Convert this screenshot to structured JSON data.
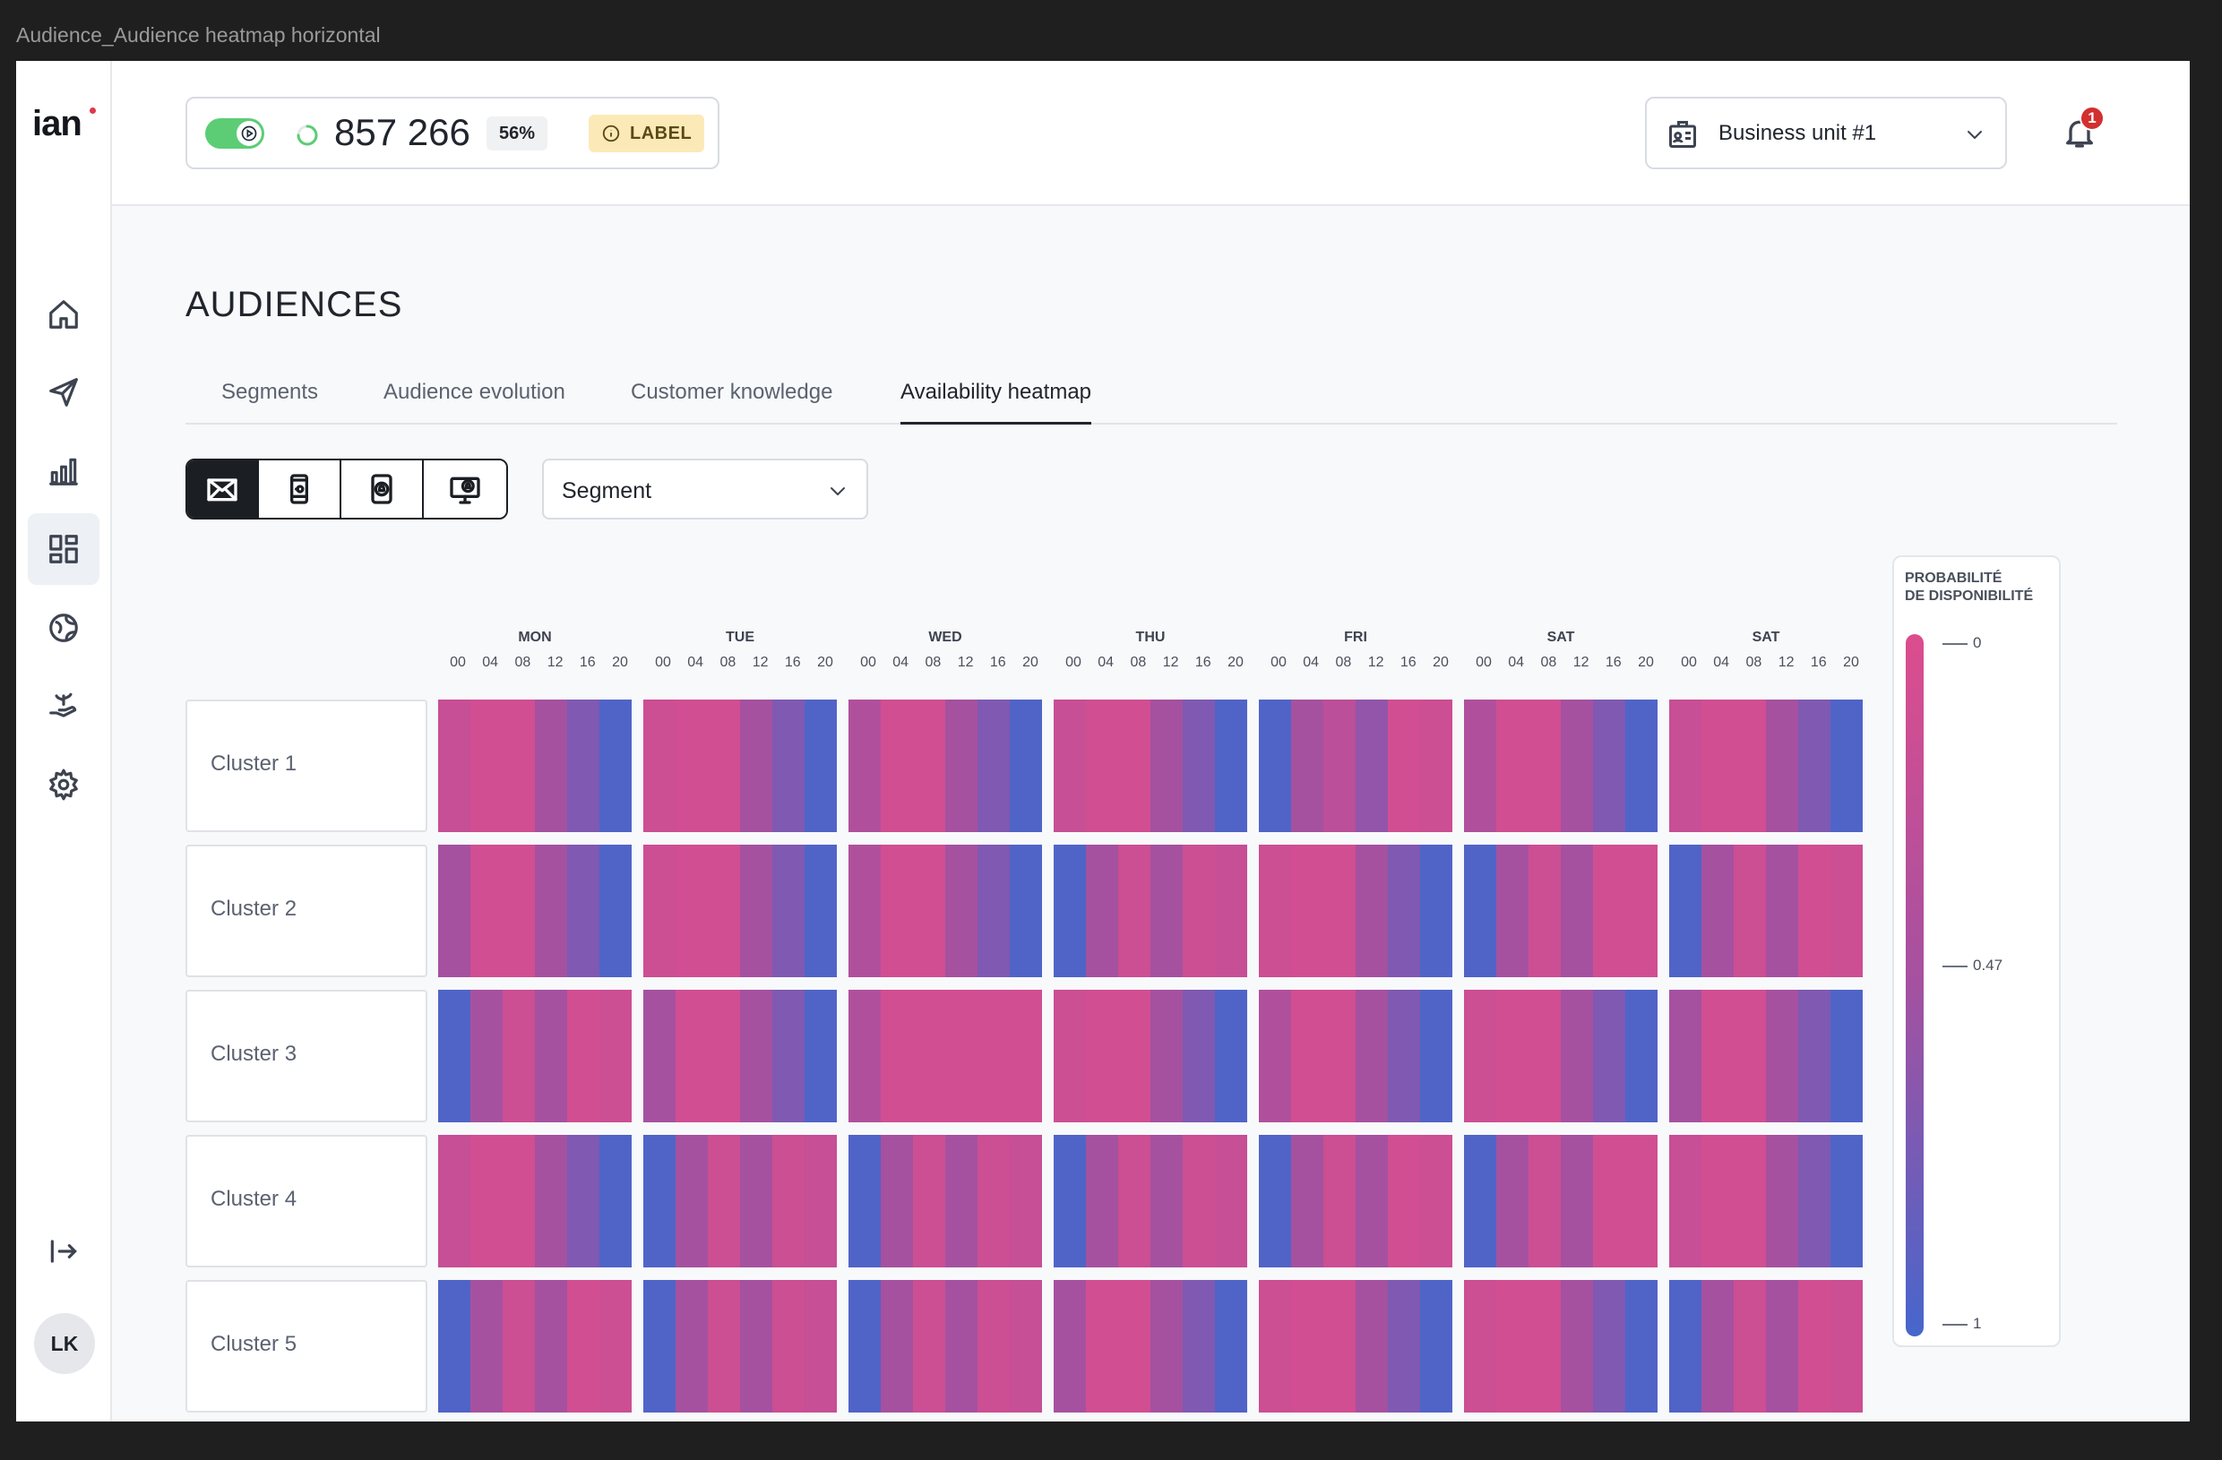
{
  "window": {
    "title": "Audience_Audience heatmap horizontal"
  },
  "brand": {
    "logo_text": "ian"
  },
  "sidebar": {
    "items": [
      {
        "name": "home-icon"
      },
      {
        "name": "send-icon"
      },
      {
        "name": "bar-chart-icon"
      },
      {
        "name": "dashboard-icon"
      },
      {
        "name": "globe-icon"
      },
      {
        "name": "hand-plant-icon"
      },
      {
        "name": "gear-icon"
      }
    ],
    "active_index": 3,
    "user_initials": "LK"
  },
  "header": {
    "count": "857 266",
    "percent": "56%",
    "label_badge": "LABEL",
    "business_unit": "Business unit #1",
    "notification_count": "1"
  },
  "page": {
    "title": "AUDIENCES",
    "tabs": [
      {
        "label": "Segments",
        "active": false
      },
      {
        "label": "Audience evolution",
        "active": false
      },
      {
        "label": "Customer knowledge",
        "active": false
      },
      {
        "label": "Availability heatmap",
        "active": true
      }
    ],
    "channels": [
      "email-icon",
      "mobile-icon",
      "push-notification-icon",
      "web-notification-icon"
    ],
    "segment_select": "Segment"
  },
  "heatmap": {
    "days": [
      "MON",
      "TUE",
      "WED",
      "THU",
      "FRI",
      "SAT",
      "SAT"
    ],
    "hours": [
      "00",
      "04",
      "08",
      "12",
      "16",
      "20"
    ],
    "clusters": [
      "Cluster 1",
      "Cluster 2",
      "Cluster 3",
      "Cluster 4",
      "Cluster 5"
    ],
    "values": [
      [
        [
          0.2,
          0.1,
          0.1,
          0.5,
          0.7,
          0.95
        ],
        [
          0.15,
          0.1,
          0.1,
          0.5,
          0.7,
          0.95
        ],
        [
          0.4,
          0.1,
          0.1,
          0.5,
          0.7,
          0.95
        ],
        [
          0.2,
          0.1,
          0.1,
          0.5,
          0.7,
          0.95
        ],
        [
          0.95,
          0.5,
          0.3,
          0.6,
          0.1,
          0.15
        ],
        [
          0.4,
          0.1,
          0.1,
          0.5,
          0.7,
          0.95
        ],
        [
          0.2,
          0.1,
          0.1,
          0.5,
          0.7,
          0.95
        ]
      ],
      [
        [
          0.5,
          0.1,
          0.1,
          0.5,
          0.7,
          0.95
        ],
        [
          0.15,
          0.1,
          0.1,
          0.5,
          0.7,
          0.95
        ],
        [
          0.4,
          0.1,
          0.1,
          0.5,
          0.7,
          0.95
        ],
        [
          0.95,
          0.5,
          0.15,
          0.5,
          0.15,
          0.2
        ],
        [
          0.15,
          0.1,
          0.1,
          0.5,
          0.7,
          0.95
        ],
        [
          0.95,
          0.5,
          0.15,
          0.5,
          0.1,
          0.1
        ],
        [
          0.95,
          0.5,
          0.15,
          0.5,
          0.1,
          0.15
        ]
      ],
      [
        [
          0.95,
          0.5,
          0.15,
          0.5,
          0.1,
          0.15
        ],
        [
          0.5,
          0.1,
          0.1,
          0.5,
          0.7,
          0.95
        ],
        [
          0.4,
          0.1,
          0.1,
          0.1,
          0.1,
          0.1
        ],
        [
          0.15,
          0.1,
          0.1,
          0.5,
          0.7,
          0.95
        ],
        [
          0.4,
          0.1,
          0.1,
          0.5,
          0.7,
          0.95
        ],
        [
          0.15,
          0.1,
          0.1,
          0.5,
          0.7,
          0.95
        ],
        [
          0.5,
          0.1,
          0.1,
          0.5,
          0.7,
          0.95
        ]
      ],
      [
        [
          0.2,
          0.1,
          0.1,
          0.5,
          0.7,
          0.95
        ],
        [
          0.95,
          0.5,
          0.15,
          0.5,
          0.15,
          0.2
        ],
        [
          0.95,
          0.5,
          0.15,
          0.5,
          0.15,
          0.2
        ],
        [
          0.95,
          0.5,
          0.15,
          0.5,
          0.15,
          0.2
        ],
        [
          0.95,
          0.5,
          0.15,
          0.5,
          0.1,
          0.15
        ],
        [
          0.95,
          0.5,
          0.15,
          0.5,
          0.1,
          0.1
        ],
        [
          0.2,
          0.1,
          0.1,
          0.5,
          0.7,
          0.95
        ]
      ],
      [
        [
          0.95,
          0.5,
          0.15,
          0.5,
          0.1,
          0.15
        ],
        [
          0.95,
          0.5,
          0.15,
          0.5,
          0.15,
          0.2
        ],
        [
          0.95,
          0.5,
          0.15,
          0.5,
          0.15,
          0.2
        ],
        [
          0.5,
          0.1,
          0.1,
          0.5,
          0.7,
          0.95
        ],
        [
          0.15,
          0.1,
          0.1,
          0.5,
          0.7,
          0.95
        ],
        [
          0.15,
          0.1,
          0.1,
          0.5,
          0.7,
          0.95
        ],
        [
          0.95,
          0.5,
          0.15,
          0.5,
          0.1,
          0.15
        ]
      ]
    ]
  },
  "legend": {
    "title_line1": "PROBABILITÉ",
    "title_line2": "DE DISPONIBILITÉ",
    "min": "0",
    "mid": "0.47",
    "max": "1",
    "color_low": "#dc4d8e",
    "color_mid": "#a551a0",
    "color_high": "#4666cc"
  },
  "colors": {
    "accent": "#1b1e23",
    "toggle_on": "#5ccd75",
    "label_badge_bg": "#fbeab8",
    "notification_badge": "#d32f2f"
  }
}
